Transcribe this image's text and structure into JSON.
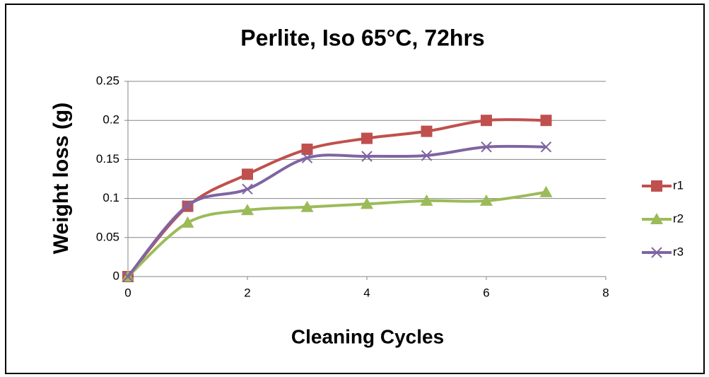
{
  "chart_data": {
    "type": "line",
    "title": "Perlite,  Iso 65°C, 72hrs",
    "x_label": "Cleaning Cycles",
    "y_label": "Weight loss (g)",
    "x": [
      0,
      1,
      2,
      3,
      4,
      5,
      6,
      7
    ],
    "series": [
      {
        "name": "r1",
        "color": "#c0504d",
        "marker": "square",
        "values": [
          0,
          0.09,
          0.131,
          0.163,
          0.177,
          0.186,
          0.2,
          0.2
        ]
      },
      {
        "name": "r2",
        "color": "#9bbb59",
        "marker": "triangle",
        "values": [
          0,
          0.069,
          0.085,
          0.089,
          0.093,
          0.097,
          0.097,
          0.108
        ]
      },
      {
        "name": "r3",
        "color": "#8064a2",
        "marker": "x",
        "values": [
          0,
          0.091,
          0.112,
          0.152,
          0.154,
          0.155,
          0.166,
          0.166
        ]
      }
    ],
    "xlim": [
      0,
      8
    ],
    "xticks": [
      0,
      2,
      4,
      6,
      8
    ],
    "ylim": [
      0,
      0.25
    ],
    "yticks": [
      0,
      0.05,
      0.1,
      0.15,
      0.2,
      0.25
    ],
    "grid": true,
    "smooth": true,
    "legend": "right"
  }
}
